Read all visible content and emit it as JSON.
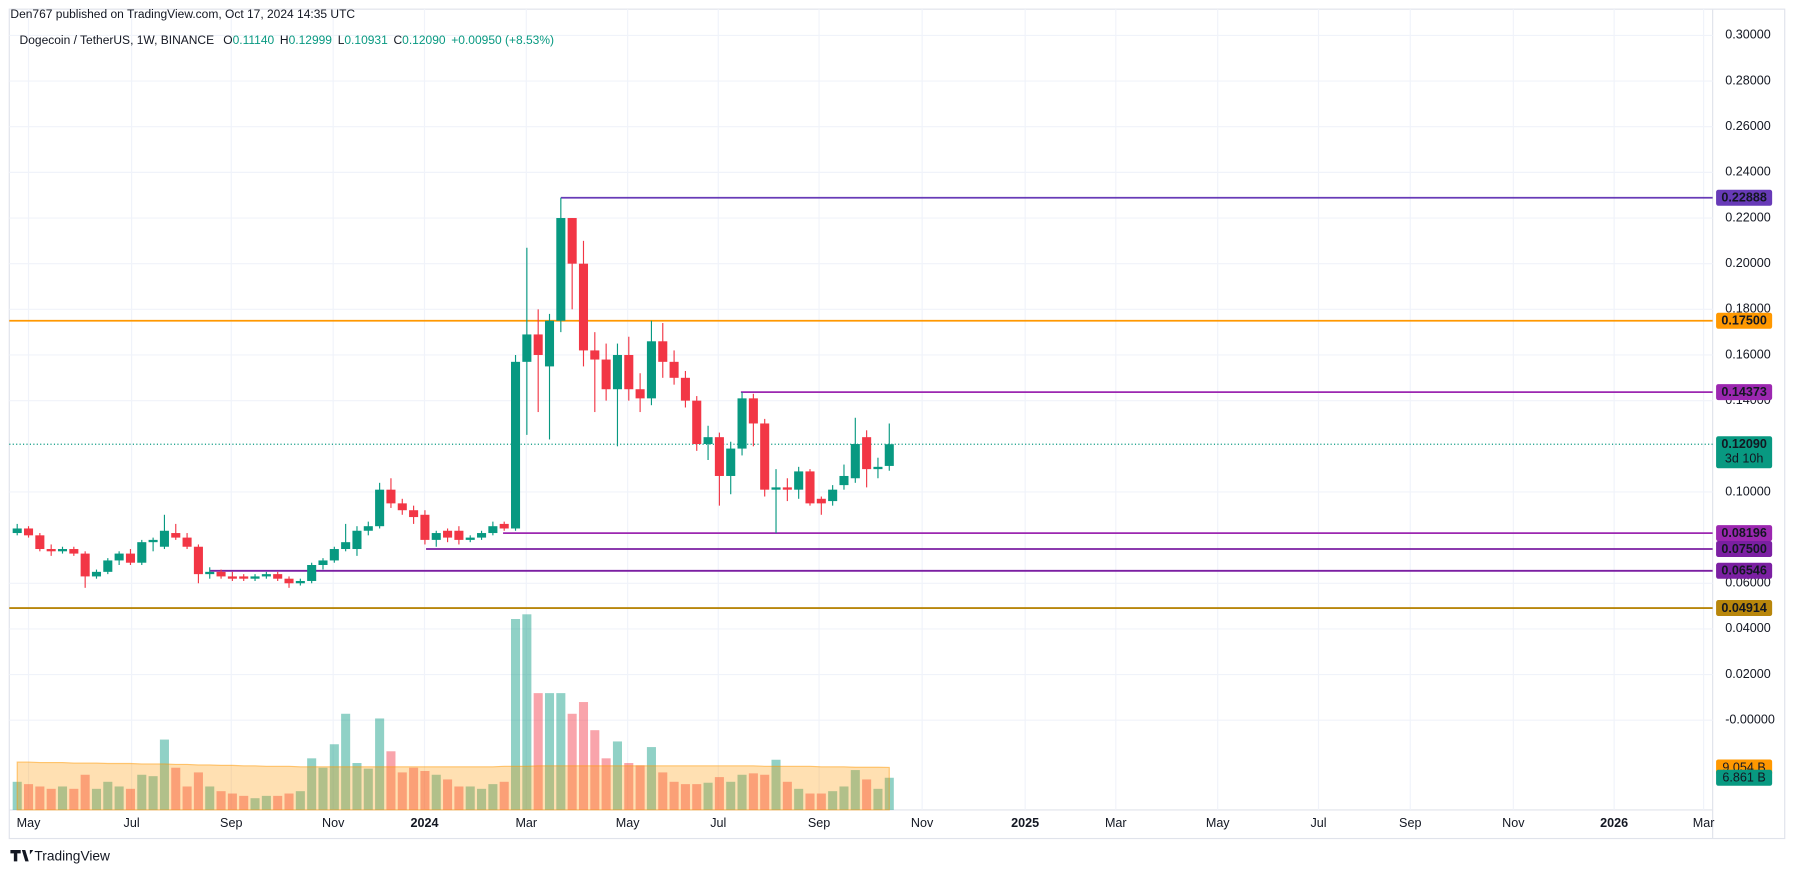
{
  "chart_data": {
    "type": "candlestick",
    "published": "Den767 published on TradingView.com, Oct 17, 2024 14:35 UTC",
    "symbol": "Dogecoin / TetherUS, 1W, BINANCE",
    "ohlc_keys": [
      "O",
      "H",
      "L",
      "C"
    ],
    "ohlc_texts": [
      "0.11140",
      "0.12999",
      "0.10931",
      "0.12090"
    ],
    "change": "+0.00950 (+8.53%)",
    "brand": "TradingView",
    "up_color": "#089981",
    "down_color": "#f23645",
    "open": [
      0.082,
      0.084,
      0.081,
      0.075,
      0.074,
      0.075,
      0.073,
      0.063,
      0.065,
      0.07,
      0.073,
      0.069,
      0.078,
      0.076,
      0.082,
      0.08,
      0.076,
      0.064,
      0.065,
      0.063,
      0.063,
      0.062,
      0.063,
      0.064,
      0.062,
      0.06,
      0.061,
      0.068,
      0.07,
      0.075,
      0.075,
      0.083,
      0.085,
      0.101,
      0.095,
      0.092,
      0.09,
      0.079,
      0.083,
      0.083,
      0.079,
      0.08,
      0.082,
      0.086,
      0.084,
      0.157,
      0.169,
      0.155,
      0.175,
      0.22,
      0.2,
      0.162,
      0.158,
      0.145,
      0.16,
      0.145,
      0.141,
      0.166,
      0.157,
      0.15,
      0.14,
      0.121,
      0.124,
      0.107,
      0.119,
      0.141,
      0.13,
      0.101,
      0.102,
      0.101,
      0.109,
      0.097,
      0.096,
      0.103,
      0.106,
      0.124,
      0.11,
      0.1114
    ],
    "high": [
      0.086,
      0.085,
      0.082,
      0.077,
      0.076,
      0.076,
      0.074,
      0.066,
      0.071,
      0.074,
      0.075,
      0.079,
      0.08,
      0.09,
      0.086,
      0.082,
      0.077,
      0.067,
      0.066,
      0.065,
      0.064,
      0.064,
      0.065,
      0.065,
      0.063,
      0.062,
      0.069,
      0.071,
      0.076,
      0.086,
      0.085,
      0.087,
      0.104,
      0.106,
      0.097,
      0.094,
      0.092,
      0.083,
      0.084,
      0.085,
      0.081,
      0.083,
      0.087,
      0.087,
      0.16,
      0.207,
      0.18,
      0.178,
      0.22888,
      0.22,
      0.21,
      0.17,
      0.165,
      0.165,
      0.168,
      0.152,
      0.175,
      0.174,
      0.162,
      0.153,
      0.142,
      0.129,
      0.126,
      0.122,
      0.14373,
      0.143,
      0.132,
      0.11,
      0.106,
      0.111,
      0.11,
      0.098,
      0.103,
      0.112,
      0.1325,
      0.127,
      0.115,
      0.12999
    ],
    "low": [
      0.081,
      0.08,
      0.074,
      0.072,
      0.073,
      0.072,
      0.058,
      0.062,
      0.064,
      0.068,
      0.068,
      0.068,
      0.074,
      0.075,
      0.079,
      0.075,
      0.06,
      0.062,
      0.062,
      0.061,
      0.061,
      0.061,
      0.062,
      0.061,
      0.058,
      0.059,
      0.06,
      0.066,
      0.069,
      0.074,
      0.072,
      0.081,
      0.084,
      0.093,
      0.09,
      0.086,
      0.077,
      0.076,
      0.078,
      0.077,
      0.078,
      0.079,
      0.081,
      0.083,
      0.083,
      0.125,
      0.135,
      0.123,
      0.17,
      0.18,
      0.155,
      0.135,
      0.14,
      0.12,
      0.14,
      0.135,
      0.138,
      0.15,
      0.147,
      0.137,
      0.118,
      0.114,
      0.094,
      0.099,
      0.116,
      0.12,
      0.098,
      0.08196,
      0.096,
      0.097,
      0.094,
      0.09,
      0.094,
      0.101,
      0.104,
      0.102,
      0.106,
      0.10931
    ],
    "close": [
      0.084,
      0.081,
      0.075,
      0.074,
      0.075,
      0.073,
      0.063,
      0.065,
      0.07,
      0.073,
      0.069,
      0.078,
      0.079,
      0.083,
      0.08,
      0.076,
      0.064,
      0.065,
      0.063,
      0.062,
      0.062,
      0.063,
      0.064,
      0.062,
      0.06,
      0.061,
      0.068,
      0.07,
      0.075,
      0.078,
      0.083,
      0.085,
      0.101,
      0.095,
      0.092,
      0.089,
      0.079,
      0.082,
      0.08,
      0.079,
      0.08,
      0.082,
      0.085,
      0.084,
      0.157,
      0.169,
      0.16,
      0.175,
      0.22,
      0.2,
      0.162,
      0.158,
      0.145,
      0.16,
      0.145,
      0.141,
      0.166,
      0.157,
      0.15,
      0.14,
      0.121,
      0.124,
      0.107,
      0.119,
      0.141,
      0.13,
      0.101,
      0.102,
      0.101,
      0.109,
      0.095,
      0.095,
      0.101,
      0.107,
      0.121,
      0.11,
      0.111,
      0.1209
    ],
    "volume": [
      6,
      5.5,
      5,
      4.5,
      5,
      4.5,
      7.5,
      4.5,
      6,
      5,
      4.5,
      7.5,
      7.2,
      15,
      9,
      5,
      8,
      5,
      4,
      3.5,
      3,
      2.5,
      3,
      3,
      3.5,
      4,
      11,
      9,
      14,
      20.5,
      10,
      8.8,
      19.5,
      12.5,
      8,
      9,
      8.3,
      7.5,
      6.5,
      5,
      5,
      4.5,
      5.5,
      6,
      40.7,
      41.7,
      24.9,
      24.9,
      24.9,
      20.5,
      23,
      17,
      11,
      14.6,
      10,
      9.5,
      13.4,
      8,
      6,
      5.5,
      5.5,
      5.8,
      7,
      6,
      7.5,
      7.8,
      7.5,
      10.7,
      6,
      4.5,
      3.5,
      3.5,
      4,
      5,
      8.5,
      6.5,
      4.5,
      6.861
    ],
    "volume_ma": [
      10.2,
      10.2,
      10.1,
      10.1,
      10.1,
      10.0,
      10.0,
      10.0,
      9.9,
      9.9,
      9.9,
      9.8,
      9.8,
      9.8,
      9.7,
      9.7,
      9.6,
      9.6,
      9.5,
      9.5,
      9.4,
      9.4,
      9.3,
      9.3,
      9.3,
      9.2,
      9.2,
      9.2,
      9.2,
      9.2,
      9.2,
      9.2,
      9.2,
      9.2,
      9.2,
      9.2,
      9.2,
      9.2,
      9.2,
      9.2,
      9.2,
      9.2,
      9.2,
      9.3,
      9.3,
      9.3,
      9.4,
      9.4,
      9.4,
      9.4,
      9.4,
      9.4,
      9.4,
      9.4,
      9.4,
      9.4,
      9.4,
      9.4,
      9.4,
      9.4,
      9.4,
      9.4,
      9.4,
      9.4,
      9.4,
      9.4,
      9.3,
      9.3,
      9.3,
      9.3,
      9.3,
      9.2,
      9.2,
      9.2,
      9.1,
      9.1,
      9.1,
      9.054
    ],
    "volume_label": "6.861 B",
    "volume_ma_label": "9.054 B",
    "volume_ma_color": "#ff9800",
    "volume_ylim": [
      0,
      170.7
    ],
    "ylim": [
      -0.0393,
      0.3115
    ],
    "yticks": [
      {
        "value": 0.3,
        "label": "0.30000"
      },
      {
        "value": 0.28,
        "label": "0.28000"
      },
      {
        "value": 0.26,
        "label": "0.26000"
      },
      {
        "value": 0.24,
        "label": "0.24000"
      },
      {
        "value": 0.22,
        "label": "0.22000"
      },
      {
        "value": 0.2,
        "label": "0.20000"
      },
      {
        "value": 0.18,
        "label": "0.18000"
      },
      {
        "value": 0.16,
        "label": "0.16000"
      },
      {
        "value": 0.14,
        "label": "0.14000"
      },
      {
        "value": 0.1,
        "label": "0.10000"
      },
      {
        "value": 0.06,
        "label": "0.06000"
      },
      {
        "value": 0.04,
        "label": "0.04000"
      },
      {
        "value": 0.02,
        "label": "0.02000"
      },
      {
        "value": 0,
        "label": "-0.00000"
      }
    ],
    "xlim": [
      -0.7,
      149.7
    ],
    "xticks": [
      {
        "value": 1.0,
        "label": "May"
      },
      {
        "value": 10.1,
        "label": "Jul"
      },
      {
        "value": 18.9,
        "label": "Sep"
      },
      {
        "value": 27.9,
        "label": "Nov"
      },
      {
        "value": 35.96,
        "label": "2024"
      },
      {
        "value": 44.95,
        "label": "Mar"
      },
      {
        "value": 53.9,
        "label": "May"
      },
      {
        "value": 61.9,
        "label": "Jul"
      },
      {
        "value": 70.8,
        "label": "Sep"
      },
      {
        "value": 79.9,
        "label": "Nov"
      },
      {
        "value": 89.0,
        "label": "2025"
      },
      {
        "value": 97.0,
        "label": "Mar"
      },
      {
        "value": 106.0,
        "label": "May"
      },
      {
        "value": 114.9,
        "label": "Jul"
      },
      {
        "value": 123.0,
        "label": "Sep"
      },
      {
        "value": 132.1,
        "label": "Nov"
      },
      {
        "value": 141.0,
        "label": "2026"
      },
      {
        "value": 148.9,
        "label": "Mar"
      }
    ],
    "grid": true,
    "levels": [
      {
        "value": 0.22888,
        "label": "0.22888",
        "color": "#673ab7",
        "start": 48.0
      },
      {
        "value": 0.175,
        "label": "0.17500",
        "color": "#ff9800"
      },
      {
        "value": 0.14373,
        "label": "0.14373",
        "color": "#9c27b0",
        "start": 63.9
      },
      {
        "value": 0.08196,
        "label": "0.08196",
        "color": "#9c27b0",
        "start": 42.9
      },
      {
        "value": 0.075,
        "label": "0.07500",
        "color": "#7b1fa2",
        "start": 36.1
      },
      {
        "value": 0.06546,
        "label": "0.06546",
        "color": "#7b1fa2",
        "start": 17.0
      },
      {
        "value": 0.04914,
        "label": "0.04914",
        "color": "#b8860b"
      }
    ],
    "last_price": {
      "value": 0.1209,
      "label": "0.12090",
      "countdown": "3d 10h",
      "color": "#089981"
    }
  }
}
